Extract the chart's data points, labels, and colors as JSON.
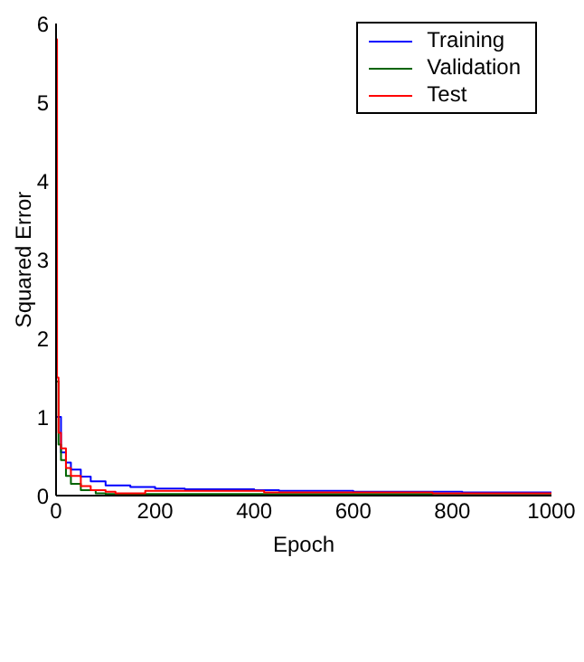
{
  "chart_data": {
    "type": "step",
    "xlabel": "Epoch",
    "ylabel": "Squared Error",
    "xlim": [
      0,
      1000
    ],
    "ylim": [
      0,
      6
    ],
    "xticks": [
      0,
      200,
      400,
      600,
      800,
      1000
    ],
    "yticks": [
      0,
      1,
      2,
      3,
      4,
      5,
      6
    ],
    "grid": false,
    "legend": "top right",
    "marker": "none",
    "line_style": "solid",
    "series": [
      {
        "name": "Training",
        "color": "#0000ff",
        "x": [
          0,
          10,
          20,
          30,
          50,
          70,
          100,
          150,
          200,
          260,
          400,
          450,
          600,
          800,
          820,
          1000
        ],
        "values": [
          1.0,
          0.55,
          0.42,
          0.33,
          0.24,
          0.18,
          0.13,
          0.11,
          0.09,
          0.08,
          0.07,
          0.06,
          0.05,
          0.05,
          0.04,
          0.04
        ]
      },
      {
        "name": "Validation",
        "color": "#006400",
        "x": [
          0,
          5,
          10,
          20,
          30,
          50,
          80,
          100,
          400,
          760,
          1000
        ],
        "values": [
          1.45,
          0.65,
          0.45,
          0.25,
          0.15,
          0.07,
          0.03,
          0.02,
          0.02,
          0.01,
          0.01
        ]
      },
      {
        "name": "Test",
        "color": "#ff0000",
        "x": [
          0,
          2,
          5,
          10,
          20,
          30,
          50,
          70,
          100,
          120,
          170,
          180,
          400,
          420,
          760,
          1000
        ],
        "values": [
          5.8,
          1.5,
          0.8,
          0.6,
          0.35,
          0.25,
          0.12,
          0.07,
          0.05,
          0.03,
          0.03,
          0.06,
          0.06,
          0.04,
          0.03,
          0.02
        ]
      }
    ]
  }
}
